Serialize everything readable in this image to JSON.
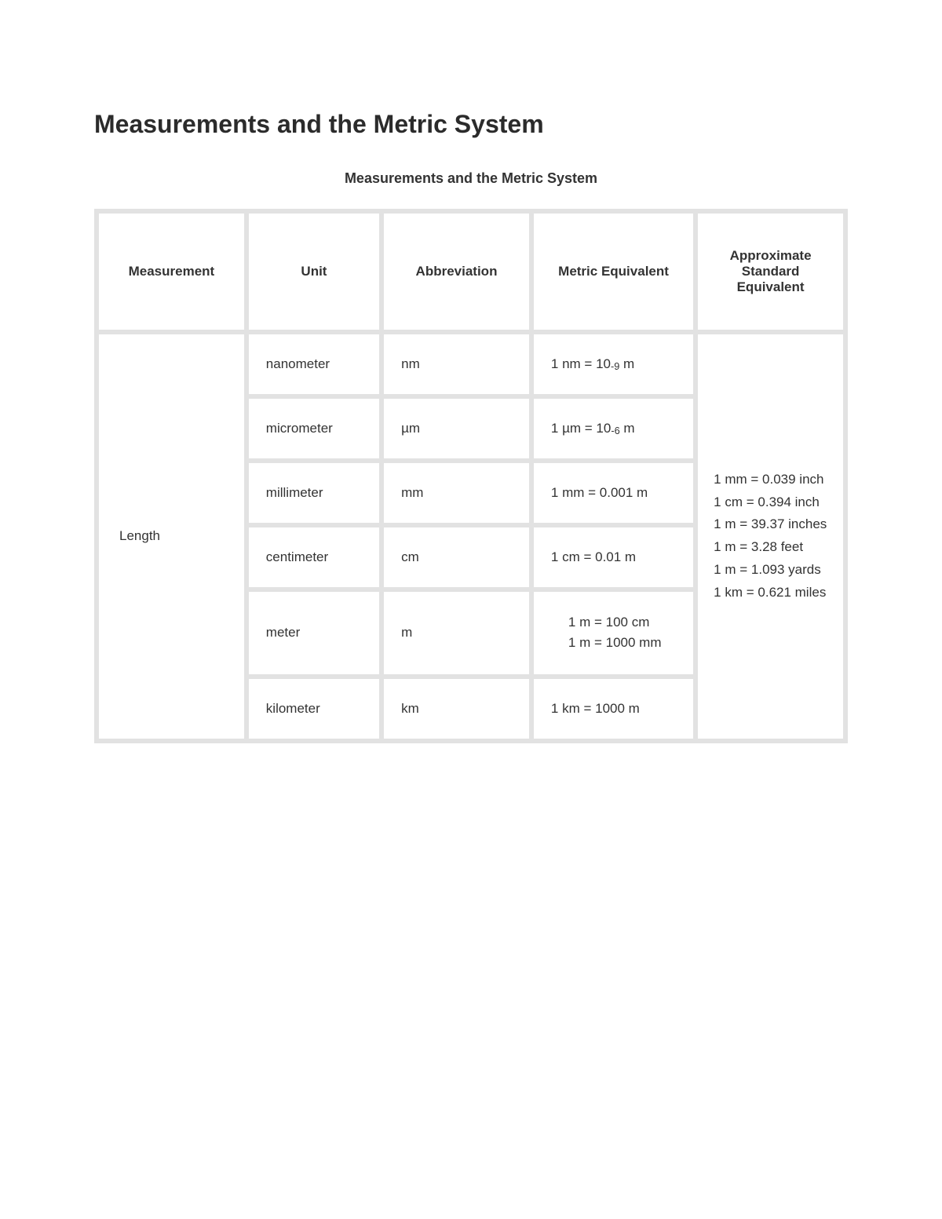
{
  "title": "Measurements and the Metric System",
  "table_caption": "Measurements and the Metric System",
  "columns": {
    "c1": "Measurement",
    "c2": "Unit",
    "c3": "Abbreviation",
    "c4": "Metric Equivalent",
    "c5": "Approximate Standard Equivalent"
  },
  "measurement_label": "Length",
  "rows": [
    {
      "unit": "nanometer",
      "abbr": "nm",
      "metric_html": "1 nm = 10<span class='sub'>-9</span> m"
    },
    {
      "unit": "micrometer",
      "abbr": "µm",
      "metric_html": "1 µm = 10<span class='sub'>-6</span> m"
    },
    {
      "unit": "millimeter",
      "abbr": "mm",
      "metric_html": "1 mm = 0.001 m"
    },
    {
      "unit": "centimeter",
      "abbr": "cm",
      "metric_html": "1 cm = 0.01 m"
    },
    {
      "unit": "meter",
      "abbr": "m",
      "metric_list": [
        "1 m = 100 cm",
        "1 m = 1000 mm"
      ]
    },
    {
      "unit": "kilometer",
      "abbr": "km",
      "metric_html": "1 km = 1000 m"
    }
  ],
  "standard_equivalents": [
    "1 mm = 0.039 inch",
    "1 cm = 0.394 inch",
    "1 m = 39.37 inches",
    "1 m = 3.28 feet",
    "1 m = 1.093 yards",
    "1 km = 0.621 miles"
  ],
  "style": {
    "background_color": "#ffffff",
    "text_color": "#333333",
    "border_color": "#e2e2e2",
    "title_fontsize": 32,
    "caption_fontsize": 18,
    "cell_fontsize": 17,
    "col_widths_pct": [
      20,
      18,
      20,
      22,
      20
    ]
  }
}
